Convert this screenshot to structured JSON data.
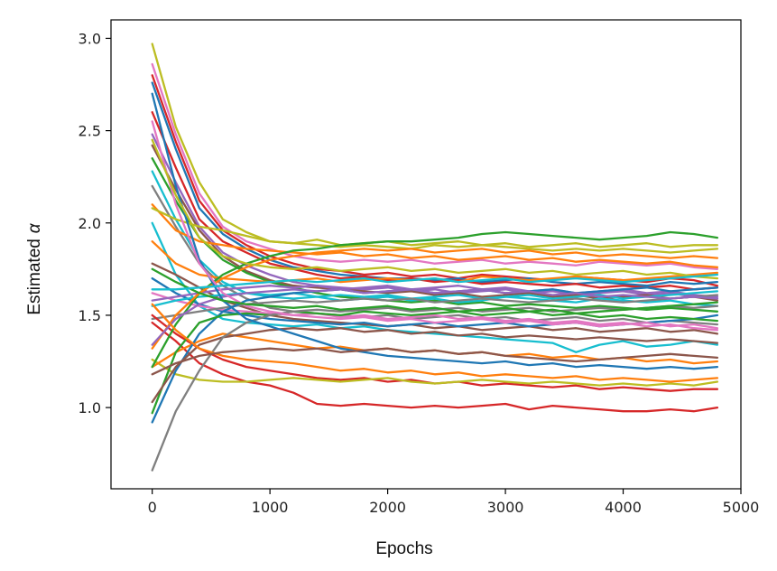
{
  "chart_data": {
    "type": "line",
    "xlabel": "Epochs",
    "ylabel": "Estimated",
    "ylabel_symbol": "α",
    "xlim": [
      -350,
      5000
    ],
    "ylim": [
      0.56,
      3.1
    ],
    "xticks": [
      0,
      1000,
      2000,
      3000,
      4000,
      5000
    ],
    "yticks": [
      1.0,
      1.5,
      2.0,
      2.5,
      3.0
    ],
    "xtick_labels": [
      "0",
      "1000",
      "2000",
      "3000",
      "4000",
      "5000"
    ],
    "ytick_labels": [
      "1.0",
      "1.5",
      "2.0",
      "2.5",
      "3.0"
    ],
    "grid": false,
    "legend": "none",
    "x": [
      0,
      200,
      400,
      600,
      800,
      1000,
      1200,
      1400,
      1600,
      1800,
      2000,
      2200,
      2400,
      2600,
      2800,
      3000,
      3200,
      3400,
      3600,
      3800,
      4000,
      4200,
      4400,
      4600,
      4800
    ],
    "series": [
      {
        "color": "#bcbd22",
        "values": [
          2.97,
          2.52,
          2.22,
          2.02,
          1.95,
          1.9,
          1.89,
          1.88,
          1.87,
          1.88,
          1.87,
          1.86,
          1.88,
          1.87,
          1.88,
          1.87,
          1.86,
          1.85,
          1.86,
          1.85,
          1.86,
          1.85,
          1.84,
          1.85,
          1.86
        ]
      },
      {
        "color": "#e377c2",
        "values": [
          2.86,
          2.48,
          2.16,
          1.98,
          1.9,
          1.86,
          1.82,
          1.8,
          1.79,
          1.8,
          1.79,
          1.8,
          1.78,
          1.79,
          1.8,
          1.78,
          1.79,
          1.78,
          1.77,
          1.79,
          1.78,
          1.77,
          1.78,
          1.76,
          1.75
        ]
      },
      {
        "color": "#d62728",
        "values": [
          2.8,
          2.44,
          2.12,
          1.96,
          1.88,
          1.82,
          1.78,
          1.75,
          1.74,
          1.72,
          1.73,
          1.71,
          1.72,
          1.7,
          1.72,
          1.71,
          1.7,
          1.69,
          1.71,
          1.7,
          1.69,
          1.68,
          1.7,
          1.69,
          1.66
        ]
      },
      {
        "color": "#1f77b4",
        "values": [
          2.76,
          2.4,
          2.08,
          1.94,
          1.86,
          1.8,
          1.76,
          1.74,
          1.72,
          1.71,
          1.7,
          1.7,
          1.69,
          1.7,
          1.68,
          1.69,
          1.7,
          1.68,
          1.67,
          1.68,
          1.67,
          1.66,
          1.68,
          1.67,
          1.68
        ]
      },
      {
        "color": "#d62728",
        "values": [
          2.6,
          2.3,
          2.02,
          1.9,
          1.84,
          1.78,
          1.75,
          1.72,
          1.7,
          1.71,
          1.69,
          1.7,
          1.68,
          1.69,
          1.67,
          1.68,
          1.67,
          1.66,
          1.67,
          1.65,
          1.66,
          1.65,
          1.66,
          1.64,
          1.65
        ]
      },
      {
        "color": "#9467bd",
        "values": [
          2.48,
          2.22,
          1.98,
          1.84,
          1.77,
          1.72,
          1.68,
          1.66,
          1.65,
          1.64,
          1.65,
          1.63,
          1.64,
          1.62,
          1.63,
          1.64,
          1.62,
          1.63,
          1.61,
          1.62,
          1.63,
          1.61,
          1.62,
          1.6,
          1.59
        ]
      },
      {
        "color": "#8c564b",
        "values": [
          2.42,
          2.18,
          1.96,
          1.82,
          1.74,
          1.69,
          1.66,
          1.65,
          1.64,
          1.63,
          1.62,
          1.63,
          1.61,
          1.62,
          1.6,
          1.61,
          1.62,
          1.6,
          1.61,
          1.59,
          1.6,
          1.61,
          1.59,
          1.6,
          1.58
        ]
      },
      {
        "color": "#2ca02c",
        "values": [
          2.35,
          2.12,
          1.92,
          1.8,
          1.73,
          1.68,
          1.65,
          1.62,
          1.6,
          1.59,
          1.58,
          1.57,
          1.58,
          1.56,
          1.57,
          1.55,
          1.56,
          1.55,
          1.54,
          1.55,
          1.54,
          1.53,
          1.54,
          1.53,
          1.52
        ]
      },
      {
        "color": "#17becf",
        "values": [
          2.28,
          2.02,
          1.8,
          1.68,
          1.62,
          1.6,
          1.59,
          1.6,
          1.58,
          1.59,
          1.6,
          1.58,
          1.59,
          1.57,
          1.58,
          1.6,
          1.59,
          1.58,
          1.57,
          1.59,
          1.58,
          1.57,
          1.58,
          1.56,
          1.55
        ]
      },
      {
        "color": "#7f7f7f",
        "values": [
          2.2,
          1.98,
          1.78,
          1.66,
          1.59,
          1.54,
          1.52,
          1.51,
          1.5,
          1.49,
          1.5,
          1.48,
          1.49,
          1.5,
          1.48,
          1.49,
          1.47,
          1.48,
          1.49,
          1.47,
          1.48,
          1.46,
          1.47,
          1.46,
          1.45
        ]
      },
      {
        "color": "#ff7f0e",
        "values": [
          2.1,
          1.96,
          1.9,
          1.88,
          1.86,
          1.85,
          1.84,
          1.83,
          1.84,
          1.82,
          1.83,
          1.81,
          1.82,
          1.8,
          1.81,
          1.82,
          1.8,
          1.81,
          1.79,
          1.8,
          1.79,
          1.78,
          1.79,
          1.77,
          1.76
        ]
      },
      {
        "color": "#bcbd22",
        "values": [
          2.08,
          2.02,
          1.98,
          1.96,
          1.93,
          1.9,
          1.89,
          1.91,
          1.88,
          1.89,
          1.9,
          1.88,
          1.89,
          1.9,
          1.88,
          1.89,
          1.87,
          1.88,
          1.89,
          1.87,
          1.88,
          1.89,
          1.87,
          1.88,
          1.88
        ]
      },
      {
        "color": "#17becf",
        "values": [
          2.0,
          1.72,
          1.55,
          1.48,
          1.46,
          1.45,
          1.44,
          1.45,
          1.43,
          1.44,
          1.42,
          1.41,
          1.4,
          1.39,
          1.38,
          1.37,
          1.36,
          1.35,
          1.3,
          1.34,
          1.36,
          1.33,
          1.34,
          1.36,
          1.34
        ]
      },
      {
        "color": "#ff7f0e",
        "values": [
          1.9,
          1.78,
          1.72,
          1.7,
          1.69,
          1.68,
          1.69,
          1.7,
          1.68,
          1.69,
          1.7,
          1.69,
          1.7,
          1.68,
          1.71,
          1.7,
          1.69,
          1.7,
          1.71,
          1.7,
          1.69,
          1.7,
          1.71,
          1.72,
          1.73
        ]
      },
      {
        "color": "#8c564b",
        "values": [
          1.78,
          1.72,
          1.65,
          1.58,
          1.54,
          1.5,
          1.48,
          1.47,
          1.46,
          1.45,
          1.44,
          1.45,
          1.43,
          1.44,
          1.42,
          1.43,
          1.44,
          1.42,
          1.43,
          1.41,
          1.42,
          1.43,
          1.41,
          1.42,
          1.4
        ]
      },
      {
        "color": "#1f77b4",
        "values": [
          1.7,
          1.62,
          1.56,
          1.52,
          1.5,
          1.48,
          1.47,
          1.46,
          1.45,
          1.46,
          1.44,
          1.45,
          1.46,
          1.44,
          1.45,
          1.46,
          1.44,
          1.45,
          1.46,
          1.44,
          1.45,
          1.46,
          1.47,
          1.48,
          1.5
        ]
      },
      {
        "color": "#e377c2",
        "values": [
          1.62,
          1.58,
          1.55,
          1.53,
          1.52,
          1.51,
          1.5,
          1.51,
          1.49,
          1.5,
          1.48,
          1.49,
          1.5,
          1.48,
          1.49,
          1.47,
          1.48,
          1.46,
          1.47,
          1.45,
          1.46,
          1.44,
          1.45,
          1.43,
          1.42
        ]
      },
      {
        "color": "#9467bd",
        "values": [
          1.58,
          1.6,
          1.62,
          1.64,
          1.65,
          1.66,
          1.65,
          1.66,
          1.64,
          1.65,
          1.66,
          1.64,
          1.65,
          1.66,
          1.64,
          1.65,
          1.63,
          1.64,
          1.62,
          1.63,
          1.64,
          1.62,
          1.63,
          1.61,
          1.6
        ]
      },
      {
        "color": "#17becf",
        "values": [
          1.55,
          1.58,
          1.6,
          1.61,
          1.62,
          1.61,
          1.62,
          1.6,
          1.61,
          1.6,
          1.61,
          1.59,
          1.6,
          1.61,
          1.59,
          1.6,
          1.61,
          1.59,
          1.6,
          1.61,
          1.59,
          1.6,
          1.61,
          1.62,
          1.63
        ]
      },
      {
        "color": "#7f7f7f",
        "values": [
          1.48,
          1.5,
          1.52,
          1.54,
          1.56,
          1.57,
          1.58,
          1.57,
          1.58,
          1.59,
          1.58,
          1.59,
          1.57,
          1.58,
          1.59,
          1.58,
          1.57,
          1.58,
          1.59,
          1.58,
          1.57,
          1.58,
          1.59,
          1.6,
          1.61
        ]
      },
      {
        "color": "#d62728",
        "values": [
          1.5,
          1.4,
          1.32,
          1.26,
          1.22,
          1.2,
          1.18,
          1.16,
          1.15,
          1.16,
          1.14,
          1.15,
          1.13,
          1.14,
          1.12,
          1.13,
          1.12,
          1.11,
          1.12,
          1.1,
          1.11,
          1.1,
          1.09,
          1.1,
          1.1
        ]
      },
      {
        "color": "#d62728",
        "values": [
          1.46,
          1.36,
          1.24,
          1.18,
          1.14,
          1.12,
          1.08,
          1.02,
          1.01,
          1.02,
          1.01,
          1.0,
          1.01,
          1.0,
          1.01,
          1.02,
          0.99,
          1.01,
          1.0,
          0.99,
          0.98,
          0.98,
          0.99,
          0.98,
          1.0
        ]
      },
      {
        "color": "#bcbd22",
        "values": [
          1.26,
          1.18,
          1.15,
          1.14,
          1.14,
          1.15,
          1.16,
          1.15,
          1.14,
          1.15,
          1.16,
          1.14,
          1.13,
          1.14,
          1.15,
          1.14,
          1.13,
          1.14,
          1.13,
          1.12,
          1.13,
          1.12,
          1.13,
          1.12,
          1.14
        ]
      },
      {
        "color": "#ff7f0e",
        "values": [
          1.22,
          1.3,
          1.36,
          1.4,
          1.38,
          1.36,
          1.34,
          1.32,
          1.33,
          1.31,
          1.32,
          1.3,
          1.31,
          1.29,
          1.3,
          1.28,
          1.29,
          1.27,
          1.28,
          1.26,
          1.27,
          1.25,
          1.26,
          1.24,
          1.25
        ]
      },
      {
        "color": "#1f77b4",
        "values": [
          0.92,
          1.2,
          1.4,
          1.52,
          1.58,
          1.6,
          1.62,
          1.63,
          1.64,
          1.62,
          1.63,
          1.64,
          1.62,
          1.63,
          1.64,
          1.62,
          1.63,
          1.64,
          1.62,
          1.63,
          1.64,
          1.65,
          1.63,
          1.64,
          1.65
        ]
      },
      {
        "color": "#2ca02c",
        "values": [
          0.97,
          1.3,
          1.46,
          1.5,
          1.51,
          1.5,
          1.52,
          1.51,
          1.5,
          1.52,
          1.51,
          1.5,
          1.51,
          1.52,
          1.5,
          1.51,
          1.52,
          1.5,
          1.51,
          1.49,
          1.5,
          1.48,
          1.49,
          1.48,
          1.47
        ]
      },
      {
        "color": "#8c564b",
        "values": [
          1.03,
          1.22,
          1.34,
          1.38,
          1.4,
          1.42,
          1.43,
          1.42,
          1.43,
          1.41,
          1.42,
          1.4,
          1.41,
          1.39,
          1.4,
          1.38,
          1.39,
          1.38,
          1.37,
          1.38,
          1.37,
          1.36,
          1.37,
          1.36,
          1.35
        ]
      },
      {
        "color": "#7f7f7f",
        "values": [
          0.66,
          0.98,
          1.2,
          1.38,
          1.46,
          1.5,
          1.52,
          1.53,
          1.52,
          1.53,
          1.54,
          1.52,
          1.53,
          1.54,
          1.52,
          1.53,
          1.54,
          1.52,
          1.53,
          1.54,
          1.53,
          1.54,
          1.55,
          1.54,
          1.55
        ]
      },
      {
        "color": "#2ca02c",
        "values": [
          1.22,
          1.45,
          1.62,
          1.72,
          1.78,
          1.82,
          1.85,
          1.86,
          1.88,
          1.89,
          1.9,
          1.9,
          1.91,
          1.92,
          1.94,
          1.95,
          1.94,
          1.93,
          1.92,
          1.91,
          1.92,
          1.93,
          1.95,
          1.94,
          1.92
        ]
      },
      {
        "color": "#ff7f0e",
        "values": [
          1.32,
          1.5,
          1.62,
          1.7,
          1.76,
          1.8,
          1.82,
          1.84,
          1.85,
          1.86,
          1.85,
          1.86,
          1.84,
          1.85,
          1.86,
          1.84,
          1.85,
          1.83,
          1.84,
          1.82,
          1.83,
          1.82,
          1.81,
          1.82,
          1.81
        ]
      },
      {
        "color": "#9467bd",
        "values": [
          1.34,
          1.48,
          1.56,
          1.6,
          1.62,
          1.63,
          1.64,
          1.63,
          1.64,
          1.62,
          1.63,
          1.64,
          1.62,
          1.63,
          1.64,
          1.62,
          1.63,
          1.61,
          1.62,
          1.6,
          1.61,
          1.6,
          1.59,
          1.6,
          1.59
        ]
      },
      {
        "color": "#1f77b4",
        "values": [
          2.7,
          2.2,
          1.8,
          1.58,
          1.48,
          1.44,
          1.4,
          1.36,
          1.32,
          1.3,
          1.28,
          1.27,
          1.26,
          1.25,
          1.24,
          1.25,
          1.23,
          1.24,
          1.22,
          1.23,
          1.22,
          1.21,
          1.22,
          1.21,
          1.22
        ]
      },
      {
        "color": "#e377c2",
        "values": [
          2.55,
          2.1,
          1.78,
          1.62,
          1.55,
          1.52,
          1.5,
          1.49,
          1.48,
          1.49,
          1.47,
          1.48,
          1.46,
          1.47,
          1.48,
          1.46,
          1.47,
          1.45,
          1.46,
          1.44,
          1.45,
          1.46,
          1.44,
          1.45,
          1.43
        ]
      },
      {
        "color": "#bcbd22",
        "values": [
          2.45,
          2.15,
          1.92,
          1.82,
          1.78,
          1.76,
          1.75,
          1.76,
          1.74,
          1.75,
          1.76,
          1.74,
          1.75,
          1.73,
          1.74,
          1.75,
          1.73,
          1.74,
          1.72,
          1.73,
          1.74,
          1.72,
          1.73,
          1.71,
          1.7
        ]
      },
      {
        "color": "#ff7f0e",
        "values": [
          1.56,
          1.42,
          1.32,
          1.28,
          1.26,
          1.25,
          1.24,
          1.22,
          1.2,
          1.21,
          1.19,
          1.2,
          1.18,
          1.19,
          1.17,
          1.18,
          1.17,
          1.16,
          1.17,
          1.15,
          1.16,
          1.15,
          1.14,
          1.15,
          1.16
        ]
      },
      {
        "color": "#2ca02c",
        "values": [
          1.75,
          1.68,
          1.62,
          1.58,
          1.56,
          1.55,
          1.54,
          1.55,
          1.53,
          1.54,
          1.55,
          1.53,
          1.54,
          1.52,
          1.53,
          1.54,
          1.52,
          1.53,
          1.51,
          1.52,
          1.53,
          1.54,
          1.55,
          1.56,
          1.57
        ]
      },
      {
        "color": "#8c564b",
        "values": [
          1.18,
          1.24,
          1.28,
          1.3,
          1.31,
          1.32,
          1.31,
          1.32,
          1.3,
          1.31,
          1.32,
          1.3,
          1.31,
          1.29,
          1.3,
          1.28,
          1.27,
          1.26,
          1.25,
          1.26,
          1.27,
          1.28,
          1.29,
          1.28,
          1.27
        ]
      },
      {
        "color": "#17becf",
        "values": [
          1.64,
          1.64,
          1.65,
          1.66,
          1.67,
          1.68,
          1.69,
          1.68,
          1.69,
          1.7,
          1.68,
          1.69,
          1.7,
          1.68,
          1.69,
          1.7,
          1.68,
          1.69,
          1.7,
          1.69,
          1.68,
          1.69,
          1.7,
          1.71,
          1.72
        ]
      }
    ]
  }
}
